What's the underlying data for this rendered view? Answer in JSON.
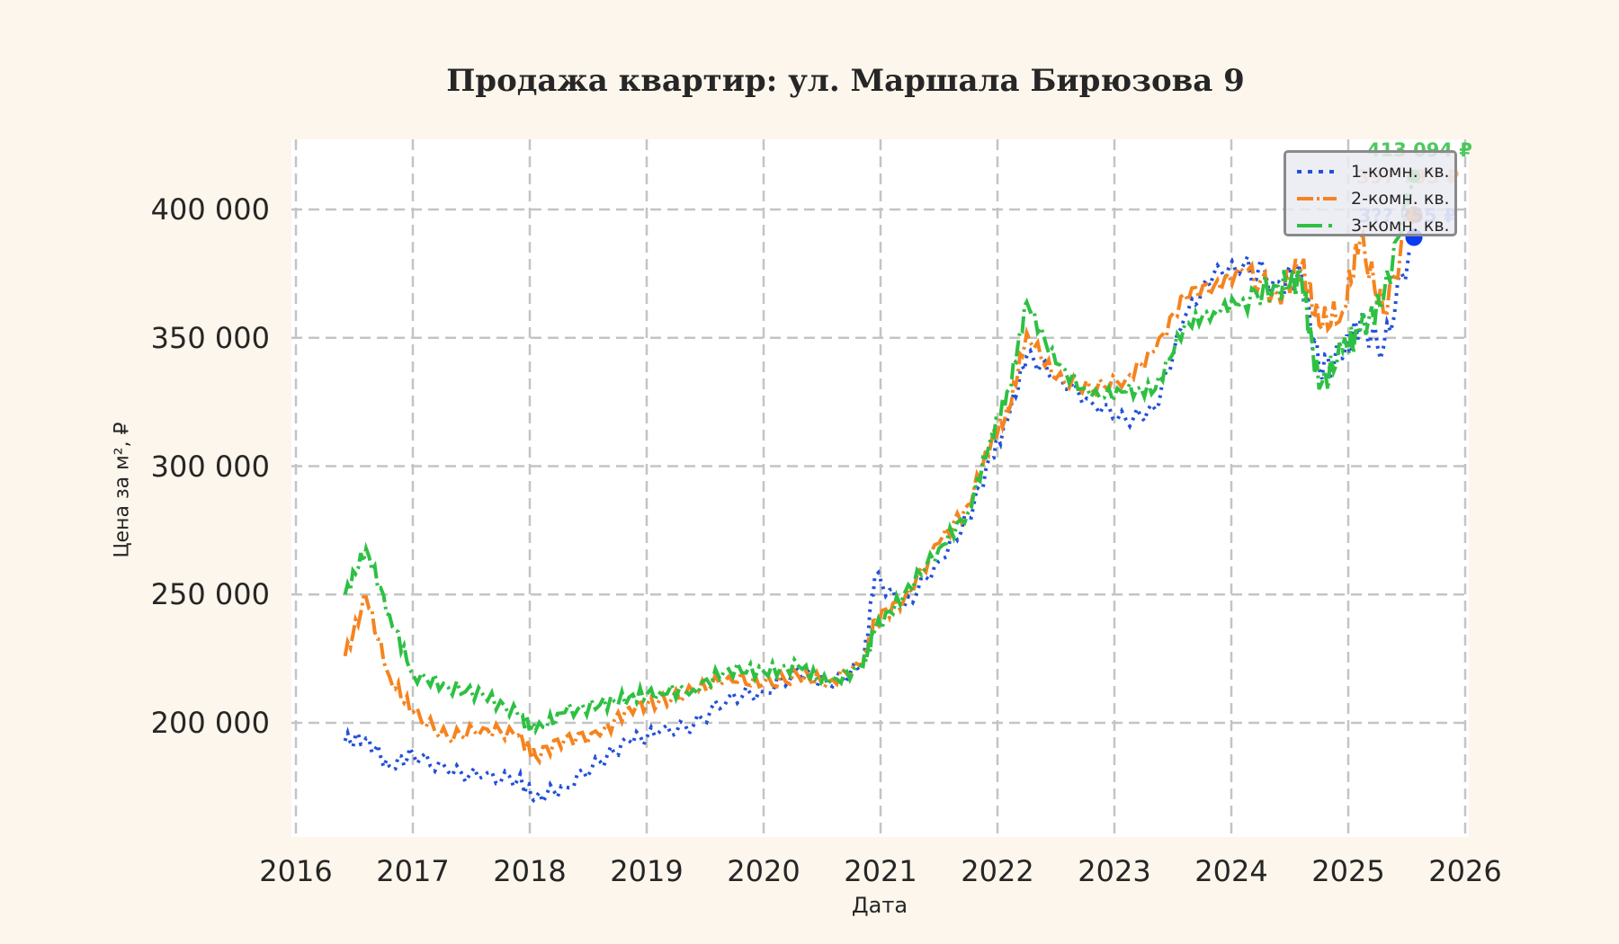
{
  "chart_data": {
    "type": "line",
    "title": "Продажа квартир: ул. Маршала Бирюзова 9",
    "xlabel": "Дата",
    "ylabel": "Цена за м², ₽",
    "xlim": [
      2016,
      2026
    ],
    "ylim": [
      157000,
      427000
    ],
    "x_ticks": [
      "2016",
      "2017",
      "2018",
      "2019",
      "2020",
      "2021",
      "2022",
      "2023",
      "2024",
      "2025",
      "2026"
    ],
    "y_ticks": [
      "200 000",
      "250 000",
      "300 000",
      "350 000",
      "400 000"
    ],
    "grid": true,
    "legend_position": "upper right",
    "x": [
      2016.42,
      2016.6,
      2016.8,
      2017.0,
      2017.3,
      2017.6,
      2017.9,
      2018.05,
      2018.3,
      2018.6,
      2018.85,
      2019.1,
      2019.4,
      2019.7,
      2020.0,
      2020.3,
      2020.55,
      2020.85,
      2020.95,
      2021.2,
      2021.5,
      2021.75,
      2021.95,
      2022.1,
      2022.25,
      2022.5,
      2022.8,
      2023.1,
      2023.35,
      2023.6,
      2023.85,
      2024.1,
      2024.4,
      2024.6,
      2024.75,
      2024.95,
      2025.1,
      2025.3,
      2025.55
    ],
    "series": [
      {
        "name": "1-комн. кв.",
        "color": "#2250d8",
        "style": "dotted",
        "values": [
          193000,
          194000,
          183000,
          188000,
          181000,
          179000,
          178000,
          171000,
          175000,
          185000,
          193000,
          196000,
          199000,
          210000,
          212000,
          220000,
          215000,
          222000,
          257000,
          245000,
          263000,
          280000,
          303000,
          320000,
          343000,
          335000,
          325000,
          318000,
          322000,
          358000,
          375000,
          378000,
          372000,
          374000,
          338000,
          342000,
          356000,
          346000,
          389000
        ]
      },
      {
        "name": "2-комн. кв.",
        "color": "#f5841f",
        "style": "dashdot",
        "values": [
          226000,
          249000,
          218000,
          204000,
          194000,
          198000,
          195000,
          187000,
          194000,
          195000,
          206000,
          208000,
          212000,
          218000,
          215000,
          218000,
          216000,
          223000,
          240000,
          248000,
          270000,
          285000,
          310000,
          322000,
          352000,
          334000,
          330000,
          334000,
          345000,
          367000,
          370000,
          376000,
          367000,
          378000,
          355000,
          360000,
          388000,
          360000,
          397000
        ]
      },
      {
        "name": "3-комн. кв.",
        "color": "#2ec043",
        "style": "dashdot",
        "values": [
          250000,
          268000,
          242000,
          219000,
          214000,
          211000,
          203000,
          197000,
          204000,
          207000,
          210000,
          212000,
          213000,
          221000,
          220000,
          222000,
          215000,
          222000,
          236000,
          250000,
          268000,
          282000,
          312000,
          330000,
          364000,
          340000,
          327000,
          329000,
          330000,
          355000,
          360000,
          365000,
          370000,
          373000,
          330000,
          345000,
          352000,
          365000,
          413000
        ]
      }
    ],
    "end_labels": [
      {
        "series": "3-комн. кв.",
        "text": "413 094 ₽",
        "value": 413094,
        "color": "#2ec043"
      },
      {
        "series": "2-комн. кв.",
        "text": "397 ?93 ₽",
        "value": 397000,
        "color": "#f5841f"
      },
      {
        "series": "1-комн. кв.",
        "text": "3?? ?55 ₽",
        "value": 389000,
        "color": "#2250d8"
      }
    ]
  },
  "legend": {
    "items": [
      {
        "label": "1-комн. кв.",
        "color": "#2250d8"
      },
      {
        "label": "2-комн. кв.",
        "color": "#f5841f"
      },
      {
        "label": "3-комн. кв.",
        "color": "#2ec043"
      }
    ]
  },
  "end_markers": {
    "green": "#2ec043",
    "orange": "#f57a00",
    "blue": "#0a3cf0"
  }
}
